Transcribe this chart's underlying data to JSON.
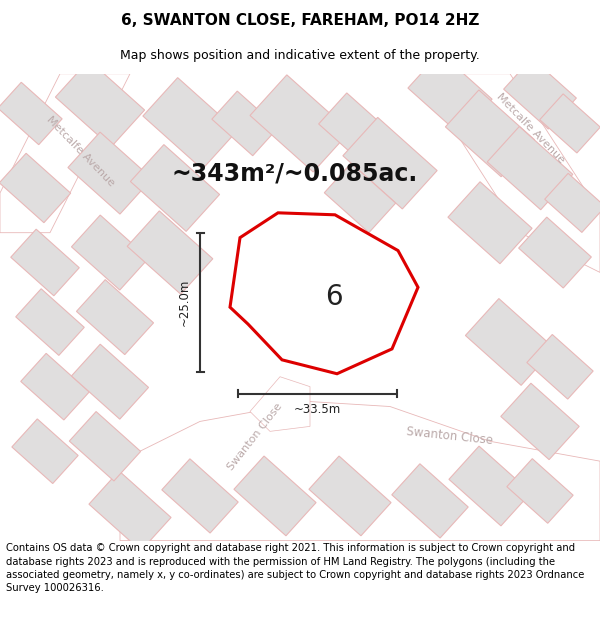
{
  "title": "6, SWANTON CLOSE, FAREHAM, PO14 2HZ",
  "subtitle": "Map shows position and indicative extent of the property.",
  "area_text": "~343m²/~0.085ac.",
  "number_label": "6",
  "dim_width": "~33.5m",
  "dim_height": "~25.0m",
  "footer": "Contains OS data © Crown copyright and database right 2021. This information is subject to Crown copyright and database rights 2023 and is reproduced with the permission of HM Land Registry. The polygons (including the associated geometry, namely x, y co-ordinates) are subject to Crown copyright and database rights 2023 Ordnance Survey 100026316.",
  "map_bg": "#f2f0f0",
  "building_fill": "#e0dede",
  "building_edge": "#e8b8b8",
  "road_fill": "#ffffff",
  "road_edge": "#e8b8b8",
  "plot_outline_color": "#dd0000",
  "dim_line_color": "#333333",
  "title_fontsize": 11,
  "subtitle_fontsize": 9,
  "area_fontsize": 17,
  "number_fontsize": 20,
  "footer_fontsize": 7.2,
  "street_color": "#bbaaaa"
}
